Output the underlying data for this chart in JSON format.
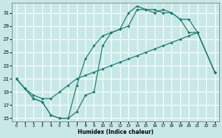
{
  "xlabel": "Humidex (Indice chaleur)",
  "bg_color": "#c8e8e8",
  "grid_color": "#ffffff",
  "line_color": "#1a7a6a",
  "xlim": [
    -0.5,
    23.5
  ],
  "ylim": [
    14.5,
    32.5
  ],
  "xticks": [
    0,
    1,
    2,
    3,
    4,
    5,
    6,
    7,
    8,
    9,
    10,
    11,
    12,
    13,
    14,
    15,
    16,
    17,
    18,
    19,
    20,
    21,
    22,
    23
  ],
  "yticks": [
    15,
    17,
    19,
    21,
    23,
    25,
    27,
    29,
    31
  ],
  "line1_x": [
    0,
    1,
    2,
    3,
    4,
    5,
    6,
    7,
    8,
    9,
    10,
    11,
    12,
    13,
    14,
    15,
    16,
    17,
    18,
    19,
    20,
    21,
    23
  ],
  "line1_y": [
    21,
    19.5,
    18,
    17.5,
    15.5,
    15,
    15,
    20,
    24,
    26,
    27.5,
    28,
    28.5,
    31,
    32,
    31.5,
    31.5,
    31,
    31,
    30,
    30,
    28,
    22
  ],
  "line2_x": [
    0,
    1,
    2,
    3,
    4,
    5,
    6,
    7,
    8,
    9,
    10,
    11,
    12,
    13,
    14,
    15,
    16,
    17,
    18,
    19,
    20,
    21,
    23
  ],
  "line2_y": [
    21,
    19.5,
    18,
    17.5,
    15.5,
    15,
    15,
    16,
    18.5,
    19,
    26,
    28,
    28.5,
    29,
    31.5,
    31.5,
    31,
    31.5,
    31,
    30,
    28,
    28,
    22
  ],
  "line3_x": [
    0,
    1,
    2,
    3,
    4,
    5,
    6,
    7,
    8,
    9,
    10,
    11,
    12,
    13,
    14,
    15,
    16,
    17,
    18,
    19,
    20,
    21,
    23
  ],
  "line3_y": [
    21,
    19.5,
    18.5,
    18,
    18,
    19,
    20,
    21,
    21.5,
    22,
    22.5,
    23,
    23.5,
    24,
    24.5,
    25,
    25.5,
    26,
    26.5,
    27,
    27.5,
    28,
    22
  ]
}
